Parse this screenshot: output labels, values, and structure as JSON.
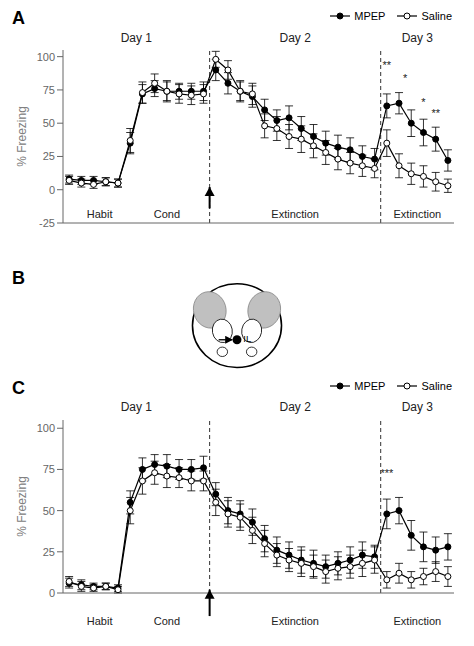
{
  "chart_data": [
    {
      "type": "line",
      "title": "A",
      "ylabel": "% Freezing",
      "xlim": [
        0.5,
        32.5
      ],
      "xticks": [],
      "ylim": [
        -25,
        105
      ],
      "yticks": [
        -25,
        0,
        25,
        50,
        75,
        100
      ],
      "tick_labels": "y",
      "grid": false,
      "legend": "upper right",
      "x": [
        1,
        2,
        3,
        4,
        5,
        6,
        7,
        8,
        9,
        10,
        11,
        12,
        13,
        14,
        15,
        16,
        17,
        18,
        19,
        20,
        21,
        22,
        23,
        24,
        25,
        26,
        27,
        28,
        29,
        30,
        31,
        32
      ],
      "series": [
        {
          "name": "MPEP",
          "color": "black",
          "marker": "filled",
          "values": [
            8,
            7,
            7,
            6,
            5,
            35,
            72,
            76,
            74,
            74,
            74,
            74,
            90,
            80,
            74,
            70,
            60,
            52,
            54,
            46,
            40,
            35,
            32,
            30,
            25,
            23,
            63,
            65,
            50,
            43,
            38,
            22
          ],
          "yerr": [
            3,
            3,
            3,
            3,
            3,
            8,
            7,
            6,
            7,
            6,
            6,
            7,
            8,
            8,
            7,
            8,
            8,
            8,
            9,
            9,
            9,
            9,
            9,
            9,
            8,
            8,
            9,
            8,
            10,
            10,
            9,
            8
          ]
        },
        {
          "name": "Saline",
          "color": "black",
          "marker": "open",
          "values": [
            7,
            5,
            4,
            6,
            5,
            37,
            73,
            80,
            74,
            72,
            71,
            72,
            98,
            90,
            74,
            72,
            48,
            46,
            40,
            38,
            33,
            28,
            23,
            20,
            18,
            16,
            35,
            18,
            12,
            10,
            6,
            3
          ],
          "yerr": [
            3,
            3,
            3,
            3,
            3,
            9,
            8,
            7,
            8,
            7,
            7,
            7,
            6,
            7,
            8,
            8,
            9,
            9,
            9,
            10,
            9,
            9,
            8,
            8,
            8,
            7,
            10,
            9,
            8,
            8,
            7,
            5
          ]
        }
      ],
      "vlines": [
        12.5,
        26.5
      ],
      "arrow": {
        "x": 12.5,
        "y": [
          -14,
          2
        ]
      },
      "annotations": [
        {
          "text": "Day 1",
          "x": 6.5,
          "y": 108
        },
        {
          "text": "Day 2",
          "x": 19.5,
          "y": 108
        },
        {
          "text": "Day 3",
          "x": 29.5,
          "y": 108
        },
        {
          "text": "Habit",
          "x": 3.5,
          "y": -12
        },
        {
          "text": "Cond",
          "x": 9.0,
          "y": -12
        },
        {
          "text": "Extinction",
          "x": 19.5,
          "y": -12
        },
        {
          "text": "Extinction",
          "x": 29.5,
          "y": -12
        },
        {
          "text": "**",
          "x": 27.0,
          "y": 88
        },
        {
          "text": "*",
          "x": 28.5,
          "y": 78
        },
        {
          "text": "*",
          "x": 30.0,
          "y": 60
        },
        {
          "text": "**",
          "x": 31.0,
          "y": 52
        }
      ]
    },
    {
      "type": "illustration",
      "title": "B",
      "annotations": [
        {
          "text": "IL"
        }
      ]
    },
    {
      "type": "line",
      "title": "C",
      "ylabel": "% Freezing",
      "xlim": [
        0.5,
        32.5
      ],
      "xticks": [],
      "ylim": [
        0,
        105
      ],
      "yticks": [
        0,
        25,
        50,
        75,
        100
      ],
      "tick_labels": "y",
      "grid": false,
      "legend": "upper right",
      "x": [
        1,
        2,
        3,
        4,
        5,
        6,
        7,
        8,
        9,
        10,
        11,
        12,
        13,
        14,
        15,
        16,
        17,
        18,
        19,
        20,
        21,
        22,
        23,
        24,
        25,
        26,
        27,
        28,
        29,
        30,
        31,
        32
      ],
      "series": [
        {
          "name": "MPEP",
          "color": "black",
          "marker": "filled",
          "values": [
            6,
            5,
            4,
            4,
            3,
            55,
            75,
            78,
            77,
            75,
            75,
            76,
            60,
            50,
            48,
            43,
            33,
            26,
            23,
            20,
            18,
            16,
            18,
            20,
            23,
            22,
            48,
            50,
            35,
            28,
            26,
            28
          ],
          "yerr": [
            3,
            3,
            2,
            2,
            2,
            7,
            7,
            6,
            7,
            6,
            6,
            7,
            7,
            8,
            8,
            8,
            8,
            8,
            8,
            8,
            8,
            7,
            7,
            8,
            8,
            7,
            9,
            8,
            9,
            9,
            8,
            8
          ]
        },
        {
          "name": "Saline",
          "color": "black",
          "marker": "open",
          "values": [
            7,
            4,
            3,
            4,
            2,
            50,
            68,
            73,
            71,
            70,
            68,
            68,
            55,
            48,
            46,
            38,
            30,
            23,
            20,
            18,
            16,
            13,
            15,
            16,
            18,
            20,
            8,
            12,
            8,
            10,
            13,
            10
          ],
          "yerr": [
            3,
            3,
            2,
            2,
            2,
            8,
            8,
            7,
            7,
            6,
            6,
            6,
            8,
            8,
            8,
            8,
            8,
            7,
            7,
            8,
            7,
            7,
            7,
            7,
            8,
            8,
            5,
            6,
            5,
            5,
            6,
            6
          ]
        }
      ],
      "vlines": [
        12.5,
        26.5
      ],
      "arrow": {
        "x": 12.5,
        "y": [
          -14,
          2
        ]
      },
      "annotations": [
        {
          "text": "Day 1",
          "x": 6.5,
          "y": 108
        },
        {
          "text": "Day 2",
          "x": 19.5,
          "y": 108
        },
        {
          "text": "Day 3",
          "x": 29.5,
          "y": 108
        },
        {
          "text": "Habit",
          "x": 3.5,
          "y": -12
        },
        {
          "text": "Cond",
          "x": 9.0,
          "y": -12
        },
        {
          "text": "Extinction",
          "x": 19.5,
          "y": -12
        },
        {
          "text": "Extinction",
          "x": 29.5,
          "y": -12
        },
        {
          "text": "***",
          "x": 27.0,
          "y": 68
        }
      ]
    }
  ]
}
